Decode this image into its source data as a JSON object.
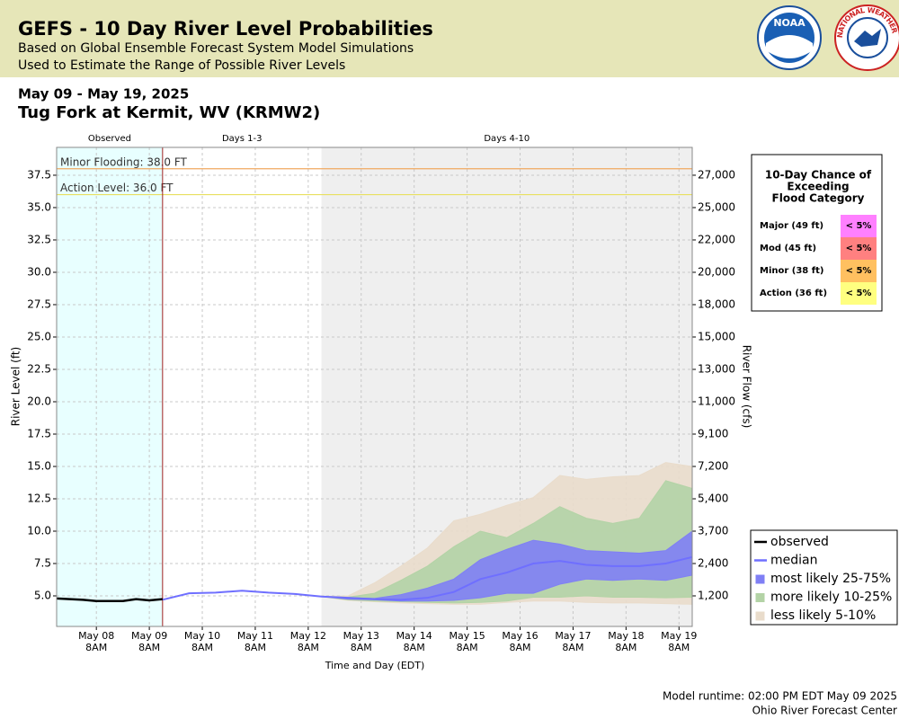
{
  "header": {
    "title": "GEFS - 10 Day River Level Probabilities",
    "subtitle_lines": [
      "Based on Global Ensemble Forecast System Model Simulations",
      "Used to Estimate the Range of Possible River Levels"
    ],
    "logos": [
      "NOAA",
      "NATIONAL WEATHER SERVICE"
    ]
  },
  "date_range": "May 09 - May 19, 2025",
  "location": "Tug Fork at Kermit, WV (KRMW2)",
  "chart_data": {
    "type": "line",
    "x_label": "Time and Day (EDT)",
    "y_label": "River Level (ft)",
    "y2_label": "River Flow (cfs)",
    "xlim": [
      "2025-05-07T14:00",
      "2025-05-19T14:00"
    ],
    "xticks": [
      {
        "value": "2025-05-08T08:00",
        "label": "May 08",
        "sublabel": "8AM"
      },
      {
        "value": "2025-05-09T08:00",
        "label": "May 09",
        "sublabel": "8AM"
      },
      {
        "value": "2025-05-10T08:00",
        "label": "May 10",
        "sublabel": "8AM"
      },
      {
        "value": "2025-05-11T08:00",
        "label": "May 11",
        "sublabel": "8AM"
      },
      {
        "value": "2025-05-12T08:00",
        "label": "May 12",
        "sublabel": "8AM"
      },
      {
        "value": "2025-05-13T08:00",
        "label": "May 13",
        "sublabel": "8AM"
      },
      {
        "value": "2025-05-14T08:00",
        "label": "May 14",
        "sublabel": "8AM"
      },
      {
        "value": "2025-05-15T08:00",
        "label": "May 15",
        "sublabel": "8AM"
      },
      {
        "value": "2025-05-16T08:00",
        "label": "May 16",
        "sublabel": "8AM"
      },
      {
        "value": "2025-05-17T08:00",
        "label": "May 17",
        "sublabel": "8AM"
      },
      {
        "value": "2025-05-18T08:00",
        "label": "May 18",
        "sublabel": "8AM"
      },
      {
        "value": "2025-05-19T08:00",
        "label": "May 19",
        "sublabel": "8AM"
      }
    ],
    "ylim": [
      2.64,
      39.65
    ],
    "yticks": [
      {
        "value": 5,
        "label": "5.0"
      },
      {
        "value": 7.5,
        "label": "7.5"
      },
      {
        "value": 10,
        "label": "10.0"
      },
      {
        "value": 12.5,
        "label": "12.5"
      },
      {
        "value": 15,
        "label": "15.0"
      },
      {
        "value": 17.5,
        "label": "17.5"
      },
      {
        "value": 20,
        "label": "20.0"
      },
      {
        "value": 22.5,
        "label": "22.5"
      },
      {
        "value": 25,
        "label": "25.0"
      },
      {
        "value": 27.5,
        "label": "27.5"
      },
      {
        "value": 30,
        "label": "30.0"
      },
      {
        "value": 32.5,
        "label": "32.5"
      },
      {
        "value": 35,
        "label": "35.0"
      },
      {
        "value": 37.5,
        "label": "37.5"
      }
    ],
    "y2ticks": [
      {
        "value": 1200,
        "label": "1,200"
      },
      {
        "value": 2400,
        "label": "2,400"
      },
      {
        "value": 3700,
        "label": "3,700"
      },
      {
        "value": 5400,
        "label": "5,400"
      },
      {
        "value": 7200,
        "label": "7,200"
      },
      {
        "value": 9100,
        "label": "9,100"
      },
      {
        "value": 11000,
        "label": "11,000"
      },
      {
        "value": 13000,
        "label": "13,000"
      },
      {
        "value": 15000,
        "label": "15,000"
      },
      {
        "value": 18000,
        "label": "18,000"
      },
      {
        "value": 20000,
        "label": "20,000"
      },
      {
        "value": 22000,
        "label": "22,000"
      },
      {
        "value": 25000,
        "label": "25,000"
      },
      {
        "value": 27000,
        "label": "27,000"
      }
    ],
    "grid": true,
    "regions": [
      {
        "label": "Observed",
        "start": "2025-05-07T14:00",
        "end": "2025-05-09T14:00",
        "color": "#e8ffff"
      },
      {
        "label": "Days 1-3",
        "start": "2025-05-09T14:00",
        "end": "2025-05-12T14:00",
        "color": "#ffffff"
      },
      {
        "label": "Days 4-10",
        "start": "2025-05-12T14:00",
        "end": "2025-05-19T14:00",
        "color": "#efefef"
      }
    ],
    "flood_lines": [
      {
        "label": "Minor Flooding: 38.0 FT",
        "value": 38,
        "color": "#f0a860"
      },
      {
        "label": "Action Level: 36.0 FT",
        "value": 36,
        "color": "#e8e060"
      }
    ],
    "series": [
      {
        "name": "observed",
        "kind": "line",
        "color": "#000000",
        "x": [
          "2025-05-07T14:00",
          "2025-05-07T20:00",
          "2025-05-08T02:00",
          "2025-05-08T08:00",
          "2025-05-08T14:00",
          "2025-05-08T20:00",
          "2025-05-09T02:00",
          "2025-05-09T08:00",
          "2025-05-09T14:00"
        ],
        "values": [
          4.8,
          4.75,
          4.7,
          4.6,
          4.6,
          4.6,
          4.75,
          4.65,
          4.75
        ]
      },
      {
        "name": "median",
        "kind": "line",
        "color": "#6f6fff",
        "x": [
          "2025-05-09T14:00",
          "2025-05-10T02:00",
          "2025-05-10T14:00",
          "2025-05-11T02:00",
          "2025-05-11T14:00",
          "2025-05-12T02:00",
          "2025-05-12T14:00",
          "2025-05-13T02:00",
          "2025-05-13T14:00",
          "2025-05-14T02:00",
          "2025-05-14T14:00",
          "2025-05-15T02:00",
          "2025-05-15T14:00",
          "2025-05-16T02:00",
          "2025-05-16T14:00",
          "2025-05-17T02:00",
          "2025-05-17T14:00",
          "2025-05-18T02:00",
          "2025-05-18T14:00",
          "2025-05-19T02:00",
          "2025-05-19T14:00"
        ],
        "values": [
          4.7,
          5.2,
          5.25,
          5.4,
          5.25,
          5.15,
          4.95,
          4.85,
          4.75,
          4.7,
          4.85,
          5.3,
          6.3,
          6.8,
          7.5,
          7.7,
          7.4,
          7.3,
          7.3,
          7.5,
          8.0
        ]
      },
      {
        "name": "most likely 25-75%",
        "kind": "band",
        "color": "#7f7ff5",
        "x": [
          "2025-05-12T14:00",
          "2025-05-13T02:00",
          "2025-05-13T14:00",
          "2025-05-14T02:00",
          "2025-05-14T14:00",
          "2025-05-15T02:00",
          "2025-05-15T14:00",
          "2025-05-16T02:00",
          "2025-05-16T14:00",
          "2025-05-17T02:00",
          "2025-05-17T14:00",
          "2025-05-18T02:00",
          "2025-05-18T14:00",
          "2025-05-19T02:00",
          "2025-05-19T14:00"
        ],
        "high": [
          4.95,
          4.85,
          4.8,
          5.1,
          5.6,
          6.3,
          7.8,
          8.6,
          9.3,
          9.0,
          8.5,
          8.4,
          8.3,
          8.5,
          10.0
        ],
        "low": [
          4.95,
          4.75,
          4.7,
          4.6,
          4.6,
          4.65,
          4.85,
          5.2,
          5.2,
          5.9,
          6.3,
          6.2,
          6.3,
          6.2,
          6.6
        ]
      },
      {
        "name": "more likely 10-25%",
        "kind": "band",
        "color": "#b3d3a6",
        "x": [
          "2025-05-12T14:00",
          "2025-05-13T02:00",
          "2025-05-13T14:00",
          "2025-05-14T02:00",
          "2025-05-14T14:00",
          "2025-05-15T02:00",
          "2025-05-15T14:00",
          "2025-05-16T02:00",
          "2025-05-16T14:00",
          "2025-05-17T02:00",
          "2025-05-17T14:00",
          "2025-05-18T02:00",
          "2025-05-18T14:00",
          "2025-05-19T02:00",
          "2025-05-19T14:00"
        ],
        "high": [
          4.95,
          4.9,
          5.2,
          6.2,
          7.3,
          8.8,
          10.0,
          9.5,
          10.6,
          11.9,
          11.0,
          10.6,
          11.0,
          13.9,
          13.3
        ],
        "low": [
          4.95,
          4.7,
          4.6,
          4.55,
          4.5,
          4.45,
          4.5,
          4.6,
          4.9,
          4.9,
          5.0,
          4.9,
          4.9,
          4.85,
          4.9
        ]
      },
      {
        "name": "less likely 5-10%",
        "kind": "band",
        "color": "#e9dccb",
        "x": [
          "2025-05-12T14:00",
          "2025-05-13T02:00",
          "2025-05-13T14:00",
          "2025-05-14T02:00",
          "2025-05-14T14:00",
          "2025-05-15T02:00",
          "2025-05-15T14:00",
          "2025-05-16T02:00",
          "2025-05-16T14:00",
          "2025-05-17T02:00",
          "2025-05-17T14:00",
          "2025-05-18T02:00",
          "2025-05-18T14:00",
          "2025-05-19T02:00",
          "2025-05-19T14:00"
        ],
        "high": [
          4.95,
          5.0,
          6.0,
          7.3,
          8.7,
          10.8,
          11.3,
          12.0,
          12.6,
          14.3,
          14.0,
          14.2,
          14.3,
          15.3,
          15.0
        ],
        "low": [
          4.95,
          4.65,
          4.55,
          4.45,
          4.4,
          4.35,
          4.35,
          4.5,
          4.6,
          4.6,
          4.5,
          4.45,
          4.45,
          4.4,
          4.35
        ]
      }
    ],
    "flood_table": {
      "title_lines": [
        "10-Day Chance of",
        "Exceeding",
        "Flood Category"
      ],
      "rows": [
        {
          "label": "Major (49 ft)",
          "chance": "< 5%",
          "color": "#ff80ff"
        },
        {
          "label": "Mod (45 ft)",
          "chance": "< 5%",
          "color": "#ff8080"
        },
        {
          "label": "Minor (38 ft)",
          "chance": "< 5%",
          "color": "#ffc060"
        },
        {
          "label": "Action (36 ft)",
          "chance": "< 5%",
          "color": "#ffff80"
        }
      ]
    }
  },
  "footer": [
    "Model runtime: 02:00 PM EDT May 09 2025",
    "Ohio River Forecast Center"
  ]
}
